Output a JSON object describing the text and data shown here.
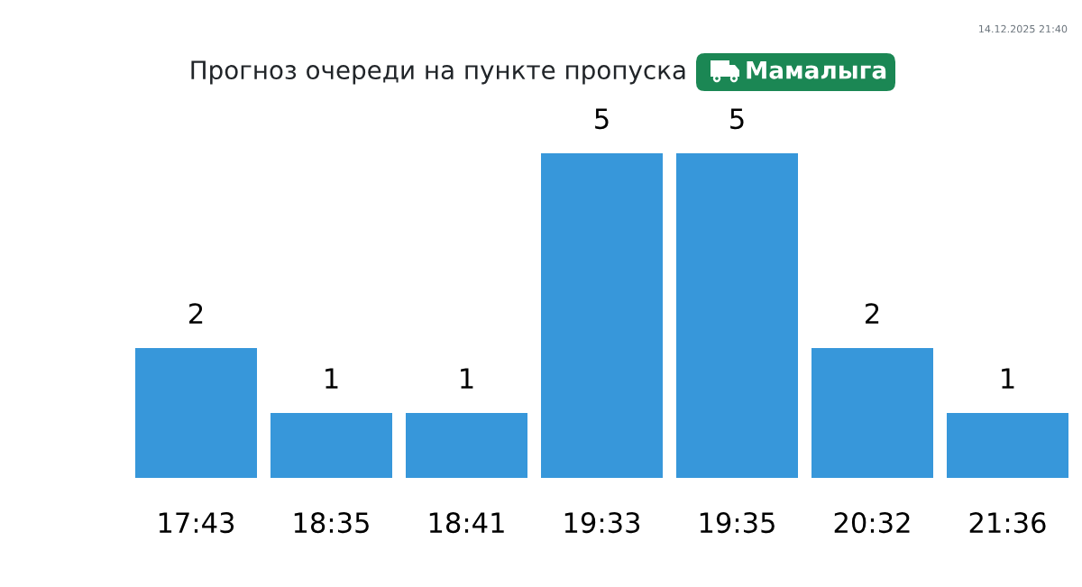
{
  "chart_data": {
    "type": "bar",
    "title": "Прогноз очереди на пункте пропуска",
    "subtitle": "Мамалыга",
    "categories": [
      "17:43",
      "18:35",
      "18:41",
      "19:33",
      "19:35",
      "20:32",
      "21:36"
    ],
    "values": [
      2,
      1,
      1,
      5,
      5,
      2,
      1
    ],
    "color": "#3797da",
    "data_labels": true,
    "tick_labels": "x",
    "grid": false,
    "legend": false,
    "annotations": [
      "14.12.2025 21:40"
    ]
  }
}
